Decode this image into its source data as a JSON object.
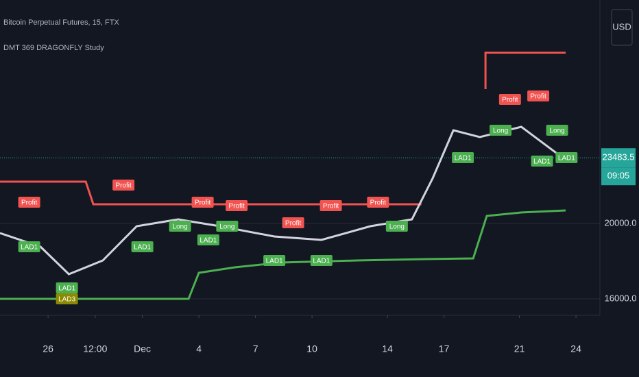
{
  "chart_data": {
    "type": "line",
    "title": "Bitcoin Perpetual Futures, 15, FTX",
    "subtitle": "DMT 369 DRAGONFLY Study",
    "currency": "USD",
    "last_price": {
      "value": 23483.5,
      "label": "23483.5",
      "color": "#26a69a"
    },
    "countdown": "09:05",
    "xlim": [
      23.45,
      55.27
    ],
    "ylim": [
      15127,
      31855
    ],
    "xticks": [
      26,
      {
        "value": 28.5,
        "label": "12:00"
      },
      {
        "value": 31,
        "label": "Dec"
      },
      {
        "value": 34,
        "label": "4"
      },
      {
        "value": 37,
        "label": "7"
      },
      {
        "value": 40,
        "label": "10"
      },
      {
        "value": 44,
        "label": "14"
      },
      {
        "value": 47,
        "label": "17"
      },
      {
        "value": 51,
        "label": "21"
      },
      {
        "value": 54,
        "label": "24"
      }
    ],
    "yticks": [
      {
        "value": 16000,
        "label": "16000.0"
      },
      {
        "value": 20000,
        "label": "20000.0"
      }
    ],
    "grid": true,
    "series": [
      {
        "color": "#f05350",
        "x": [
          23.45,
          28.0,
          28.4,
          45.8,
          null,
          49.2,
          49.2,
          53.45
        ],
        "values": [
          22218,
          22218,
          21018,
          21018,
          null,
          27127,
          29055,
          29055
        ]
      },
      {
        "color": "#4caf50",
        "x": [
          23.45,
          33.45,
          34.0,
          35.9,
          38.36,
          42.36,
          46.0,
          48.55,
          49.27,
          51.09,
          53.45
        ],
        "values": [
          16000,
          16000,
          17382,
          17673,
          17927,
          18036,
          18109,
          18145,
          20400,
          20582,
          20690
        ]
      },
      {
        "color": "#d1d4dc",
        "x": [
          23.45,
          25.6,
          27.1,
          28.9,
          30.7,
          32.9,
          35.1,
          38.0,
          40.5,
          43.1,
          45.3,
          46.4,
          47.5,
          48.9,
          51.1,
          53.3
        ],
        "values": [
          19491,
          18764,
          17309,
          18036,
          19855,
          20218,
          19855,
          19309,
          19127,
          19855,
          20218,
          22400,
          24945,
          24582,
          25127,
          23483.5
        ]
      }
    ],
    "markers": [
      {
        "name": "Profit",
        "color": "#f05350",
        "x": [
          25.0,
          30.0,
          34.2,
          36.0,
          39.0,
          41.0,
          43.5,
          50.5,
          52.0
        ],
        "values": [
          21127,
          22036,
          21127,
          20945,
          20036,
          20945,
          21127,
          26582,
          26764
        ]
      },
      {
        "name": "Long",
        "color": "#4caf50",
        "x": [
          33.0,
          35.5,
          44.5,
          50.0,
          53.0
        ],
        "values": [
          19855,
          19855,
          19855,
          24945,
          24945
        ]
      },
      {
        "name": "LAD1",
        "color": "#4caf50",
        "x": [
          25.0,
          27.0,
          31.0,
          34.5,
          38.0,
          40.5,
          48.0,
          52.2,
          53.5
        ],
        "values": [
          18764,
          16582,
          18764,
          19127,
          18036,
          18036,
          23491,
          23309,
          23491
        ]
      },
      {
        "name": "LAD3",
        "color": "#8c8a00",
        "x": [
          27.0
        ],
        "values": [
          16000
        ]
      }
    ]
  }
}
